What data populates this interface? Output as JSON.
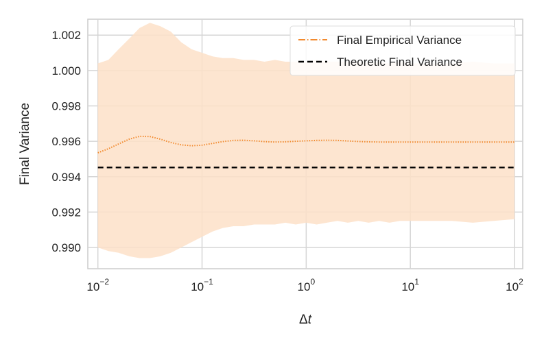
{
  "chart_data": {
    "type": "line",
    "title": "",
    "xlabel": "Δt",
    "ylabel": "Final Variance",
    "xscale": "log",
    "xlim": [
      0.008,
      120
    ],
    "ylim": [
      0.9888,
      1.0029
    ],
    "grid": true,
    "legend_position": "top-right",
    "x_ticks": [
      {
        "value": 0.01,
        "base": "10",
        "exp": "−2"
      },
      {
        "value": 0.1,
        "base": "10",
        "exp": "−1"
      },
      {
        "value": 1,
        "base": "10",
        "exp": "0"
      },
      {
        "value": 10,
        "base": "10",
        "exp": "1"
      },
      {
        "value": 100,
        "base": "10",
        "exp": "2"
      }
    ],
    "y_ticks": [
      {
        "value": 0.99,
        "label": "0.990"
      },
      {
        "value": 0.992,
        "label": "0.992"
      },
      {
        "value": 0.994,
        "label": "0.994"
      },
      {
        "value": 0.996,
        "label": "0.996"
      },
      {
        "value": 0.998,
        "label": "0.998"
      },
      {
        "value": 1.0,
        "label": "1.000"
      },
      {
        "value": 1.002,
        "label": "1.002"
      }
    ],
    "colors": {
      "empirical": "#f28a2e",
      "band": "#fde0c8",
      "theoretic": "#000000",
      "grid": "#d5d5d5",
      "frame": "#cccccc"
    },
    "series": [
      {
        "name": "Final Empirical Variance",
        "style": "dotted",
        "x": [
          0.01,
          0.0126,
          0.0158,
          0.02,
          0.0251,
          0.0316,
          0.0398,
          0.0501,
          0.0631,
          0.0794,
          0.1,
          0.126,
          0.158,
          0.2,
          0.251,
          0.316,
          0.398,
          0.501,
          0.631,
          0.794,
          1,
          1.26,
          1.58,
          2,
          2.51,
          3.16,
          3.98,
          5.01,
          6.31,
          7.94,
          10,
          15.8,
          25.1,
          39.8,
          63.1,
          100
        ],
        "y": [
          0.99535,
          0.99558,
          0.99585,
          0.99612,
          0.99628,
          0.99627,
          0.99612,
          0.99593,
          0.9958,
          0.99575,
          0.99578,
          0.99588,
          0.99598,
          0.99605,
          0.99606,
          0.99603,
          0.99598,
          0.99596,
          0.99597,
          0.996,
          0.99603,
          0.99605,
          0.99606,
          0.99605,
          0.99602,
          0.99599,
          0.99597,
          0.99596,
          0.99596,
          0.99596,
          0.99596,
          0.99596,
          0.99596,
          0.99596,
          0.99596,
          0.99596
        ],
        "band_upper": [
          1.0004,
          1.0006,
          1.0012,
          1.0018,
          1.0024,
          1.0027,
          1.0025,
          1.0022,
          1.0016,
          1.0012,
          1.001,
          1.0008,
          1.0007,
          1.0007,
          1.0006,
          1.0006,
          1.0005,
          1.0006,
          1.0005,
          1.0005,
          1.0005,
          1.0006,
          1.0005,
          1.0005,
          1.0005,
          1.0005,
          1.0004,
          1.0005,
          1.0004,
          1.0005,
          1.0004,
          1.0004,
          1.0004,
          1.0005,
          1.0004,
          1.0004
        ],
        "band_lower": [
          0.99,
          0.9898,
          0.9897,
          0.9895,
          0.9894,
          0.9894,
          0.9895,
          0.9897,
          0.99,
          0.9903,
          0.9906,
          0.9909,
          0.9911,
          0.9912,
          0.9912,
          0.9913,
          0.9913,
          0.9913,
          0.9914,
          0.9913,
          0.9914,
          0.9913,
          0.9914,
          0.9915,
          0.9914,
          0.9915,
          0.9914,
          0.9915,
          0.9914,
          0.9915,
          0.9915,
          0.9915,
          0.9915,
          0.9914,
          0.9915,
          0.9916
        ]
      },
      {
        "name": "Theoretic Final Variance",
        "style": "dashed",
        "x": [
          0.01,
          100
        ],
        "y": [
          0.99452,
          0.99452
        ]
      }
    ]
  }
}
